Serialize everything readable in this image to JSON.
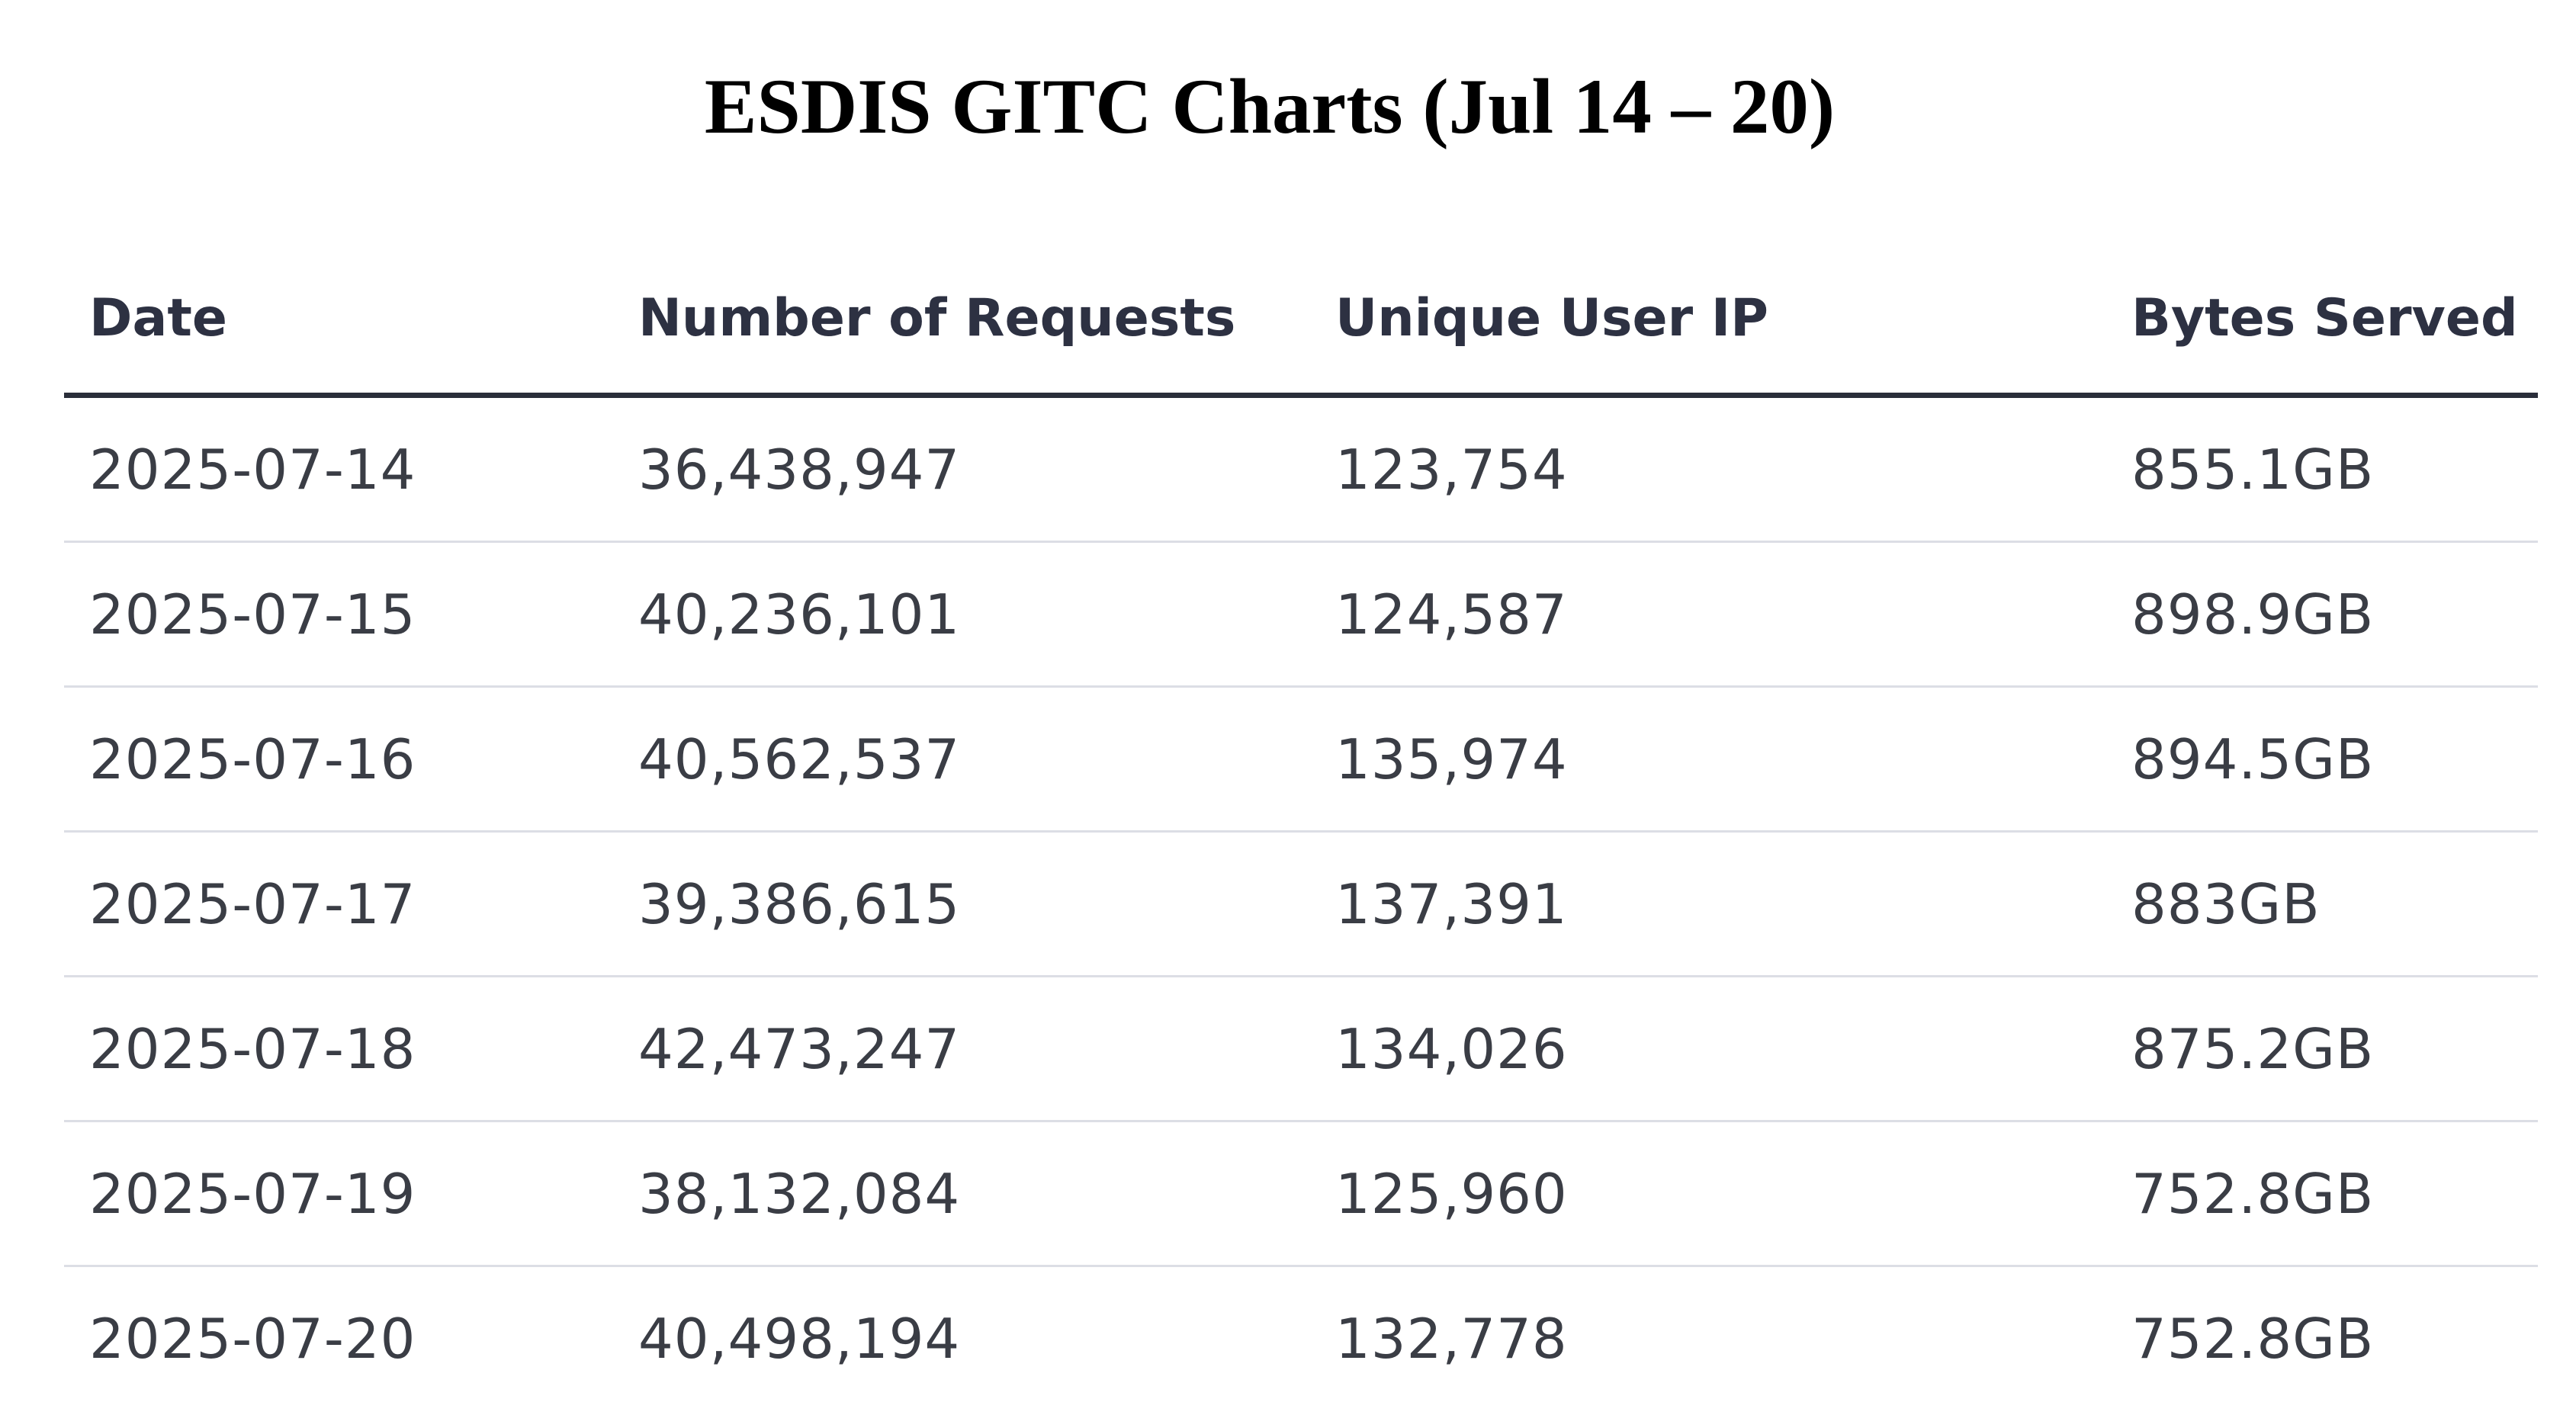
{
  "title": "ESDIS GITC Charts (Jul 14 – 20)",
  "chart_data": {
    "type": "table",
    "title": "ESDIS GITC Charts (Jul 14 – 20)",
    "columns": [
      "Date",
      "Number of Requests",
      "Unique User IP",
      "Bytes Served"
    ],
    "rows": [
      [
        "2025-07-14",
        "36,438,947",
        "123,754",
        "855.1GB"
      ],
      [
        "2025-07-15",
        "40,236,101",
        "124,587",
        "898.9GB"
      ],
      [
        "2025-07-16",
        "40,562,537",
        "135,974",
        "894.5GB"
      ],
      [
        "2025-07-17",
        "39,386,615",
        "137,391",
        "883GB"
      ],
      [
        "2025-07-18",
        "42,473,247",
        "134,026",
        "875.2GB"
      ],
      [
        "2025-07-19",
        "38,132,084",
        "125,960",
        "752.8GB"
      ],
      [
        "2025-07-20",
        "40,498,194",
        "132,778",
        "752.8GB"
      ]
    ]
  },
  "colors": {
    "header_text": "#2d3142",
    "cell_text": "#3a3d45",
    "header_rule": "#2a2e3a",
    "row_rule": "#dcdee5"
  }
}
